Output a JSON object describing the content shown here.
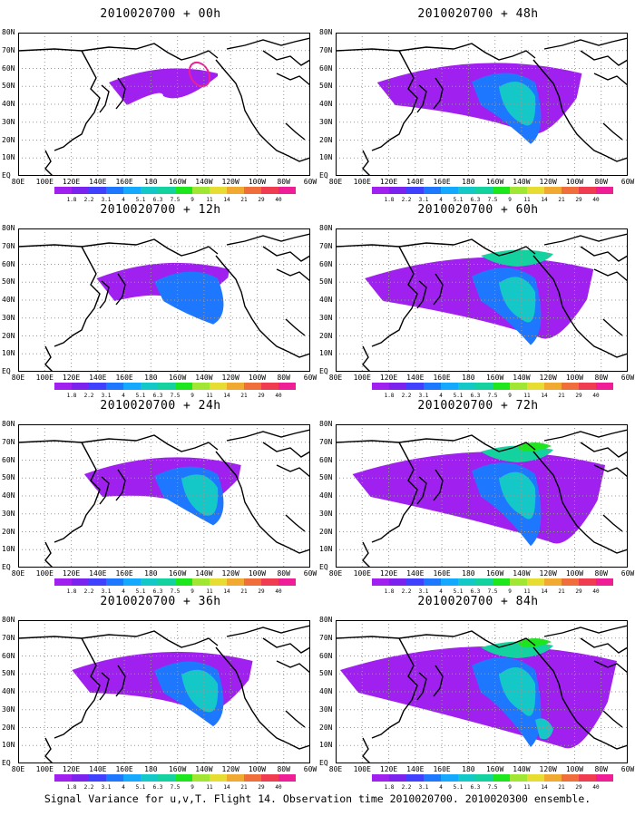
{
  "panels": [
    {
      "title": "2010020700 + 00h",
      "lead": 0
    },
    {
      "title": "2010020700 + 48h",
      "lead": 48
    },
    {
      "title": "2010020700 + 12h",
      "lead": 12
    },
    {
      "title": "2010020700 + 60h",
      "lead": 60
    },
    {
      "title": "2010020700 + 24h",
      "lead": 24
    },
    {
      "title": "2010020700 + 72h",
      "lead": 72
    },
    {
      "title": "2010020700 + 36h",
      "lead": 36
    },
    {
      "title": "2010020700 + 84h",
      "lead": 84
    }
  ],
  "lat_labels": [
    "80N",
    "70N",
    "60N",
    "50N",
    "40N",
    "30N",
    "20N",
    "10N",
    "EQ"
  ],
  "lon_labels": [
    "80E",
    "100E",
    "120E",
    "140E",
    "160E",
    "180",
    "160W",
    "140W",
    "120W",
    "100W",
    "80W",
    "60W"
  ],
  "colorbar": {
    "labels": [
      "1.8",
      "2.2",
      "3.1",
      "4",
      "5.1",
      "6.3",
      "7.5",
      "9",
      "11",
      "14",
      "21",
      "29",
      "40"
    ],
    "colors": [
      "#a020f0",
      "#7a22ee",
      "#4040ff",
      "#1e78ff",
      "#14a8ff",
      "#14c8c8",
      "#14d2a0",
      "#1ee61e",
      "#a0e632",
      "#e6dc32",
      "#f0aa32",
      "#f06e3c",
      "#f03c50",
      "#f01e96"
    ]
  },
  "footer": "Signal Variance for u,v,T. Flight 14. Observation time 2010020700. 2010020300 ensemble."
}
